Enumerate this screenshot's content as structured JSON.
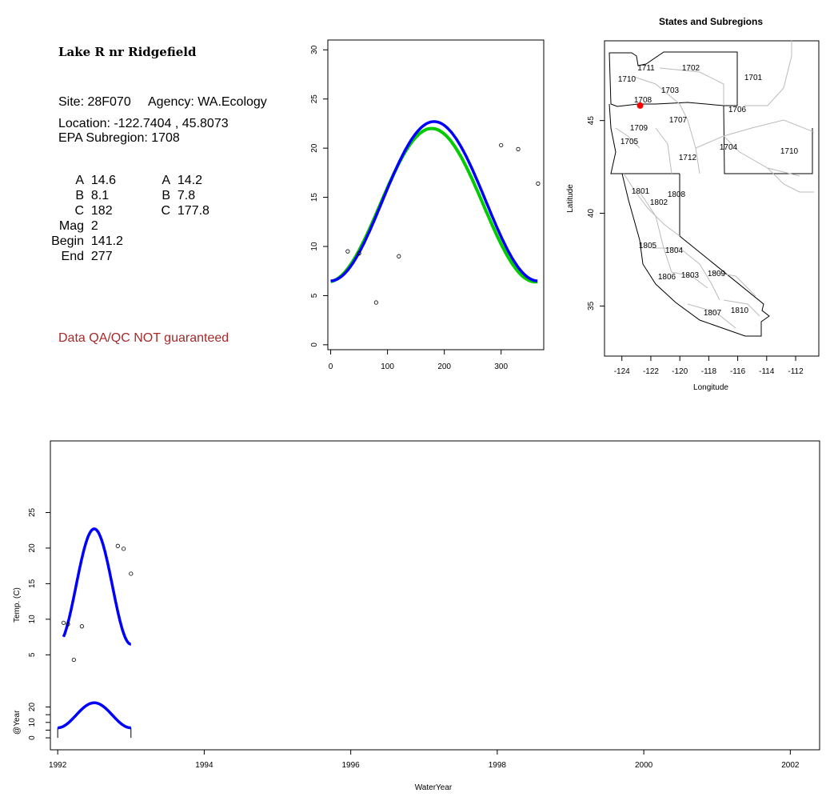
{
  "info": {
    "site_title": "Lake R nr Ridgefield",
    "site_line_site": "Site: 28F070",
    "site_line_agency": "Agency: WA.Ecology",
    "location": "Location: -122.7404 , 45.8073",
    "epa_subregion": "EPA Subregion: 1708",
    "params_left": [
      {
        "label": "A",
        "value": "14.6"
      },
      {
        "label": "B",
        "value": "8.1"
      },
      {
        "label": "C",
        "value": "182"
      },
      {
        "label": "Mag",
        "value": "2"
      },
      {
        "label": "Begin",
        "value": "141.2"
      },
      {
        "label": "End",
        "value": "277"
      }
    ],
    "params_right": [
      {
        "label": "A",
        "value": "14.2"
      },
      {
        "label": "B",
        "value": "7.8"
      },
      {
        "label": "C",
        "value": "177.8"
      }
    ],
    "qa_note": "Data QA/QC NOT guaranteed",
    "qa_color": "#a52a2a"
  },
  "colors": {
    "fit_blue": "#0000ff",
    "fit_green": "#00cc00",
    "marker": "#ff0000",
    "region_border": "#bbbbbb"
  },
  "map": {
    "title": "States and Subregions",
    "xlabel": "Longitude",
    "ylabel": "Latitude",
    "xticks": [
      "-124",
      "-122",
      "-120",
      "-118",
      "-116",
      "-114",
      "-112"
    ],
    "yticks": [
      "35",
      "40",
      "45"
    ],
    "regions": [
      "1711",
      "1702",
      "1701",
      "1710",
      "1703",
      "1708",
      "1706",
      "1707",
      "1709",
      "1705",
      "1704",
      "1710",
      "1712",
      "1801",
      "1808",
      "1802",
      "1805",
      "1804",
      "1806",
      "1803",
      "1809",
      "1810",
      "1807"
    ],
    "site_marker": {
      "lon": -122.74,
      "lat": 45.81
    }
  },
  "chart_data": [
    {
      "type": "scatter",
      "title": "",
      "xlabel": "",
      "ylabel": "",
      "xlim": [
        -5,
        375
      ],
      "ylim": [
        -0.5,
        31
      ],
      "xticks": [
        0,
        100,
        200,
        300
      ],
      "yticks": [
        0,
        5,
        10,
        15,
        20,
        25,
        30
      ],
      "points": [
        [
          30,
          9.5
        ],
        [
          50,
          9.3
        ],
        [
          80,
          4.3
        ],
        [
          120,
          9.0
        ],
        [
          300,
          20.3
        ],
        [
          330,
          19.9
        ],
        [
          365,
          16.4
        ]
      ],
      "series": [
        {
          "color": "#00cc00",
          "kind": "sinusoid",
          "A": 14.2,
          "B": 7.8,
          "C": 177.8,
          "x_range": [
            0,
            365
          ]
        },
        {
          "color": "#0000ff",
          "kind": "sinusoid",
          "A": 14.6,
          "B": 8.1,
          "C": 182,
          "x_range": [
            0,
            365
          ]
        }
      ]
    },
    {
      "type": "line",
      "title": "",
      "xlabel": "WaterYear",
      "ylabel": "Temp. (C)",
      "xlim": [
        1991.9,
        2002.4
      ],
      "xticks": [
        1992,
        1994,
        1996,
        1998,
        2000,
        2002
      ],
      "upper_panel": {
        "ylabel": "Temp. (C)",
        "ylim": [
          2,
          30
        ],
        "yticks": [
          5,
          10,
          15,
          20,
          25
        ],
        "points": [
          [
            1992.08,
            9.5
          ],
          [
            1992.14,
            9.3
          ],
          [
            1992.22,
            4.3
          ],
          [
            1992.33,
            9.0
          ],
          [
            1992.82,
            20.3
          ],
          [
            1992.9,
            19.9
          ],
          [
            1993.0,
            16.4
          ]
        ],
        "series": [
          {
            "color": "#0000ff",
            "kind": "sinusoid",
            "A": 14.6,
            "B": 8.1,
            "C": 182,
            "x_range": [
              1992.08,
              1993.0
            ]
          }
        ]
      },
      "lower_panel": {
        "ylabel": "@Year",
        "ylim": [
          -1,
          27
        ],
        "yticks": [
          0,
          5,
          10,
          15,
          20
        ],
        "ytick_labels": [
          "0",
          "10",
          "20"
        ],
        "series": [
          {
            "color": "#0000ff",
            "kind": "sinusoid",
            "A": 14.6,
            "B": 8.1,
            "C": 182,
            "x_range": [
              1992.0,
              1993.0
            ]
          }
        ]
      }
    }
  ]
}
